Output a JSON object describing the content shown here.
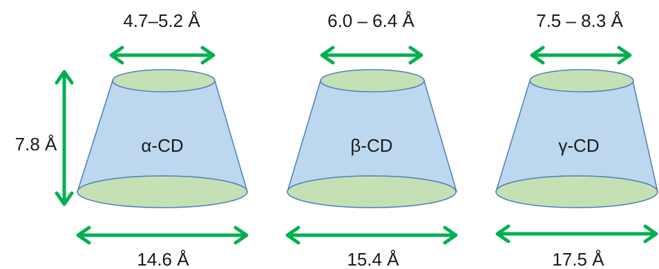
{
  "height_label": "7.8 Å",
  "cones": [
    {
      "name": "α-CD",
      "top_diameter": "4.7–5.2 Å",
      "bottom_diameter": "14.6 Å"
    },
    {
      "name": "β-CD",
      "top_diameter": "6.0 – 6.4 Å",
      "bottom_diameter": "15.4 Å"
    },
    {
      "name": "γ-CD",
      "top_diameter": "7.5 – 8.3 Å",
      "bottom_diameter": "17.5 Å"
    }
  ],
  "colors": {
    "body_fill": "#bdd7ee",
    "body_stroke": "#4a7ebb",
    "ellipse_fill": "#c5e0b4",
    "arrow": "#00b050"
  }
}
